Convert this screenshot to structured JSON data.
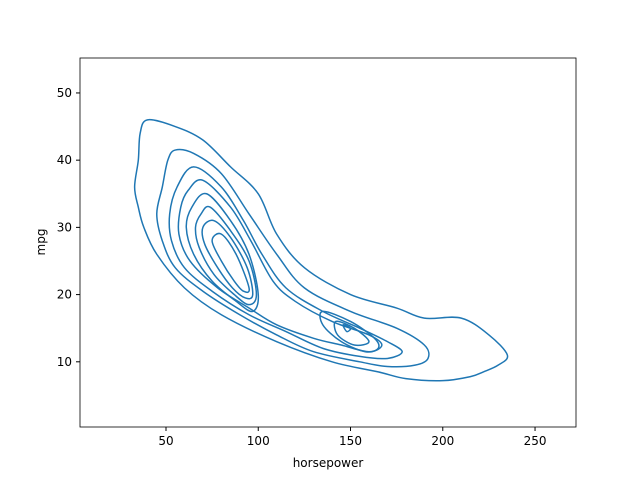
{
  "chart_data": {
    "type": "contour",
    "xlabel": "horsepower",
    "ylabel": "mpg",
    "color": "#1f77b4",
    "xlim": [
      3.4,
      272.2
    ],
    "ylim": [
      0.3,
      55.2
    ],
    "xticks": [
      50,
      100,
      150,
      200,
      250
    ],
    "yticks": [
      10,
      20,
      30,
      40,
      50
    ],
    "series": [
      {
        "x": [
          40,
          55,
          70,
          85,
          100,
          110,
          125,
          150,
          175,
          190,
          210,
          225,
          235,
          230,
          222,
          215,
          200,
          180,
          165,
          140,
          110,
          80,
          60,
          45,
          38,
          35,
          33,
          35,
          36
        ],
        "y": [
          46,
          45,
          43,
          39,
          35,
          29,
          24,
          20,
          18,
          16.5,
          16.5,
          14,
          11,
          9.5,
          8.5,
          7.8,
          7.2,
          7.5,
          8.5,
          10,
          13,
          17,
          21,
          26,
          30,
          33,
          36,
          40,
          44
        ]
      },
      {
        "x": [
          55,
          65,
          80,
          95,
          110,
          125,
          150,
          175,
          190,
          192,
          185,
          170,
          155,
          130,
          110,
          90,
          70,
          55,
          48,
          45,
          48,
          51
        ],
        "y": [
          41.5,
          41,
          38,
          32,
          26,
          21,
          17.5,
          15,
          12.5,
          10.5,
          9.5,
          9.3,
          10,
          11.5,
          14,
          17,
          20.5,
          24,
          28,
          32,
          36,
          40
        ]
      },
      {
        "x": [
          65,
          80,
          92,
          102,
          115,
          135,
          155,
          170,
          178,
          170,
          155,
          135,
          115,
          95,
          75,
          60,
          53,
          52,
          56
        ],
        "y": [
          39,
          36,
          31,
          26,
          21,
          17.5,
          15,
          13,
          11.5,
          10.5,
          10.8,
          12,
          14.5,
          17,
          20.5,
          24,
          28,
          32,
          36
        ]
      },
      {
        "x": [
          70,
          85,
          96,
          108,
          120,
          140,
          160,
          167,
          160,
          145,
          130,
          110,
          95,
          78,
          63,
          57,
          58,
          62
        ],
        "y": [
          37,
          33,
          28,
          22,
          19,
          16,
          14,
          12.5,
          11.5,
          12.5,
          13.5,
          15.5,
          18,
          21,
          25,
          29,
          33,
          35.5
        ]
      },
      {
        "x": [
          72,
          85,
          95,
          100,
          97,
          88,
          75,
          65,
          61,
          64
        ],
        "y": [
          35,
          31,
          26,
          20,
          17.5,
          19,
          22,
          26,
          30,
          33
        ]
      },
      {
        "x": [
          74,
          85,
          95,
          99,
          95,
          87,
          76,
          68,
          66,
          69
        ],
        "y": [
          33,
          29.5,
          25,
          20,
          18.5,
          20,
          23,
          27,
          30,
          32
        ]
      },
      {
        "x": [
          76,
          85,
          94,
          97,
          93,
          86,
          78,
          71,
          70
        ],
        "y": [
          31,
          28.5,
          24,
          20,
          19.5,
          21,
          24,
          27.5,
          30
        ]
      },
      {
        "x": [
          80,
          88,
          95,
          92,
          87,
          80,
          75
        ],
        "y": [
          29,
          26,
          21,
          20.5,
          22,
          25,
          28
        ]
      },
      {
        "x": [
          135,
          150,
          163,
          165,
          158,
          145,
          135
        ],
        "y": [
          17.5,
          16,
          13.5,
          12,
          11.5,
          13,
          15.5
        ]
      },
      {
        "x": [
          142,
          152,
          160,
          152,
          143
        ],
        "y": [
          16,
          15,
          13,
          12.5,
          14
        ]
      },
      {
        "x": [
          146,
          150,
          148
        ],
        "y": [
          15.5,
          15,
          14.5
        ]
      }
    ]
  }
}
